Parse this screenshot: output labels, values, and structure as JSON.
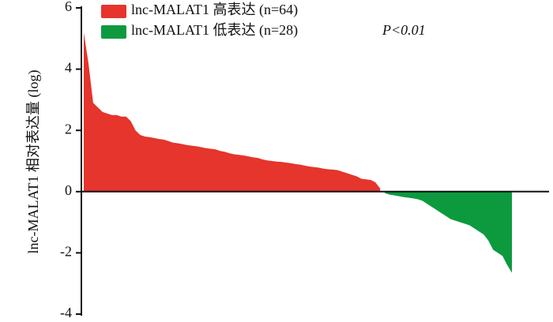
{
  "chart_data": {
    "type": "area",
    "ylabel": "lnc-MALAT1 相对表达量 (log)",
    "annotation": "P<0.01",
    "ylim": [
      -4,
      6
    ],
    "yticks": [
      -4,
      -2,
      0,
      2,
      4,
      6
    ],
    "legend": "top-left",
    "series": [
      {
        "name": "lnc-MALAT1 高表达 (n=64)",
        "color": "#e5352c",
        "values": [
          5.2,
          4.2,
          2.9,
          2.75,
          2.6,
          2.55,
          2.5,
          2.5,
          2.45,
          2.45,
          2.3,
          2.0,
          1.85,
          1.8,
          1.78,
          1.75,
          1.72,
          1.7,
          1.65,
          1.6,
          1.58,
          1.55,
          1.52,
          1.5,
          1.48,
          1.45,
          1.42,
          1.4,
          1.38,
          1.33,
          1.3,
          1.25,
          1.22,
          1.2,
          1.18,
          1.15,
          1.12,
          1.1,
          1.05,
          1.02,
          1.0,
          0.98,
          0.97,
          0.95,
          0.93,
          0.9,
          0.88,
          0.85,
          0.82,
          0.8,
          0.78,
          0.75,
          0.73,
          0.72,
          0.7,
          0.65,
          0.6,
          0.55,
          0.5,
          0.42,
          0.4,
          0.38,
          0.3,
          0.1
        ]
      },
      {
        "name": "lnc-MALAT1 低表达 (n=28)",
        "color": "#0d9a3f",
        "values": [
          -0.05,
          -0.1,
          -0.12,
          -0.15,
          -0.18,
          -0.2,
          -0.22,
          -0.25,
          -0.3,
          -0.4,
          -0.5,
          -0.6,
          -0.7,
          -0.8,
          -0.9,
          -0.95,
          -1.0,
          -1.05,
          -1.1,
          -1.2,
          -1.3,
          -1.4,
          -1.6,
          -1.9,
          -2.0,
          -2.1,
          -2.4,
          -2.65
        ]
      }
    ]
  }
}
